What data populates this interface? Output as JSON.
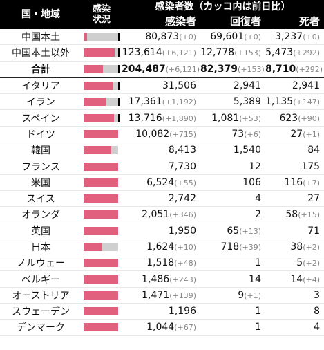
{
  "header": {
    "country_label": "国・地域",
    "bar_label_line1": "感染",
    "bar_label_line2": "状況",
    "main_label": "感染者数（カッコ内は前日比）",
    "infected_label": "感染者",
    "recovered_label": "回復者",
    "deaths_label": "死者"
  },
  "colors": {
    "bar_fill": "#e0607e",
    "bar_bg": "#cfcfcf",
    "header_bg": "#000000"
  },
  "rows": [
    {
      "name": "中国本土",
      "infected": "80,873",
      "inf_delta": "(+0)",
      "recovered": "69,601",
      "rec_delta": "(+0)",
      "deaths": "3,237",
      "dth_delta": "(+0)",
      "fill": 0.1,
      "mark": true
    },
    {
      "name": "中国本土以外",
      "infected": "123,614",
      "inf_delta": "(+6,121)",
      "recovered": "12,778",
      "rec_delta": "(+153)",
      "deaths": "5,473",
      "dth_delta": "(+292)",
      "fill": 0.9,
      "mark": true
    },
    {
      "name": "合計",
      "infected": "204,487",
      "inf_delta": "(+6,121)",
      "recovered": "82,379",
      "rec_delta": "(+153)",
      "deaths": "8,710",
      "dth_delta": "(+292)",
      "fill": 0.56,
      "mark": true,
      "total": true
    },
    {
      "name": "イタリア",
      "infected": "31,506",
      "inf_delta": "",
      "recovered": "2,941",
      "rec_delta": "",
      "deaths": "2,941",
      "dth_delta": "",
      "fill": 0.86,
      "mark": true
    },
    {
      "name": "イラン",
      "infected": "17,361",
      "inf_delta": "(+1,192)",
      "recovered": "5,389",
      "rec_delta": "",
      "deaths": "1,135",
      "dth_delta": "(+147)",
      "fill": 0.64,
      "mark": true
    },
    {
      "name": "スペイン",
      "infected": "13,716",
      "inf_delta": "(+1,890)",
      "recovered": "1,081",
      "rec_delta": "(+53)",
      "deaths": "623",
      "dth_delta": "(+90)",
      "fill": 0.88,
      "mark": true
    },
    {
      "name": "ドイツ",
      "infected": "10,082",
      "inf_delta": "(+715)",
      "recovered": "73",
      "rec_delta": "(+6)",
      "deaths": "27",
      "dth_delta": "(+1)",
      "fill": 1.0,
      "mark": false
    },
    {
      "name": "韓国",
      "infected": "8,413",
      "inf_delta": "",
      "recovered": "1,540",
      "rec_delta": "",
      "deaths": "84",
      "dth_delta": "",
      "fill": 0.8,
      "mark": false
    },
    {
      "name": "フランス",
      "infected": "7,730",
      "inf_delta": "",
      "recovered": "12",
      "rec_delta": "",
      "deaths": "175",
      "dth_delta": "",
      "fill": 1.0,
      "mark": false
    },
    {
      "name": "米国",
      "infected": "6,524",
      "inf_delta": "(+55)",
      "recovered": "106",
      "rec_delta": "",
      "deaths": "116",
      "dth_delta": "(+7)",
      "fill": 1.0,
      "mark": false
    },
    {
      "name": "スイス",
      "infected": "2,742",
      "inf_delta": "",
      "recovered": "4",
      "rec_delta": "",
      "deaths": "27",
      "dth_delta": "",
      "fill": 1.0,
      "mark": false
    },
    {
      "name": "オランダ",
      "infected": "2,051",
      "inf_delta": "(+346)",
      "recovered": "2",
      "rec_delta": "",
      "deaths": "58",
      "dth_delta": "(+15)",
      "fill": 1.0,
      "mark": false
    },
    {
      "name": "英国",
      "infected": "1,950",
      "inf_delta": "",
      "recovered": "65",
      "rec_delta": "(+13)",
      "deaths": "71",
      "dth_delta": "",
      "fill": 1.0,
      "mark": false
    },
    {
      "name": "日本",
      "infected": "1,624",
      "inf_delta": "(+10)",
      "recovered": "718",
      "rec_delta": "(+39)",
      "deaths": "38",
      "dth_delta": "(+2)",
      "fill": 0.54,
      "mark": false
    },
    {
      "name": "ノルウェー",
      "infected": "1,518",
      "inf_delta": "(+48)",
      "recovered": "1",
      "rec_delta": "",
      "deaths": "5",
      "dth_delta": "(+2)",
      "fill": 1.0,
      "mark": false
    },
    {
      "name": "ベルギー",
      "infected": "1,486",
      "inf_delta": "(+243)",
      "recovered": "14",
      "rec_delta": "",
      "deaths": "14",
      "dth_delta": "(+4)",
      "fill": 1.0,
      "mark": false
    },
    {
      "name": "オーストリア",
      "infected": "1,471",
      "inf_delta": "(+139)",
      "recovered": "9",
      "rec_delta": "(+1)",
      "deaths": "3",
      "dth_delta": "",
      "fill": 1.0,
      "mark": false
    },
    {
      "name": "スウェーデン",
      "infected": "1,196",
      "inf_delta": "",
      "recovered": "1",
      "rec_delta": "",
      "deaths": "8",
      "dth_delta": "",
      "fill": 1.0,
      "mark": false
    },
    {
      "name": "デンマーク",
      "infected": "1,044",
      "inf_delta": "(+67)",
      "recovered": "1",
      "rec_delta": "",
      "deaths": "4",
      "dth_delta": "",
      "fill": 1.0,
      "mark": false
    }
  ]
}
